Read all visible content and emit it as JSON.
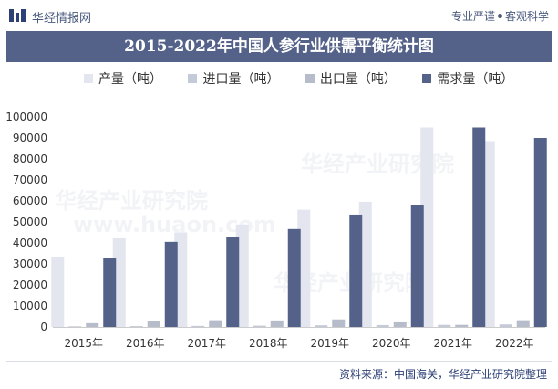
{
  "header": {
    "brand": "华经情报网",
    "tagline_left": "专业严谨",
    "tagline_right": "客观科学"
  },
  "title": "2015-2022年中国人参行业供需平衡统计图",
  "source": "资料来源：中国海关，华经产业研究院整理",
  "watermark": {
    "cn": "华经产业研究院",
    "en": "www.huaon.com"
  },
  "colors": {
    "production": "#e3e6ef",
    "imports": "#c5cad8",
    "exports": "#b7bccb",
    "demand": "#54628a",
    "axis": "#cccccc",
    "title_bg": "#54628a"
  },
  "chart_data": {
    "type": "bar",
    "title": "2015-2022年中国人参行业供需平衡统计图",
    "xlabel": "",
    "ylabel": "",
    "categories": [
      "2015年",
      "2016年",
      "2017年",
      "2018年",
      "2019年",
      "2020年",
      "2021年",
      "2022年"
    ],
    "series": [
      {
        "name": "产量（吨）",
        "values": [
          33500,
          42200,
          45000,
          48800,
          55800,
          59600,
          95000,
          88500
        ]
      },
      {
        "name": "进口量（吨）",
        "values": [
          300,
          400,
          500,
          600,
          800,
          900,
          1000,
          1200
        ]
      },
      {
        "name": "出口量（吨）",
        "values": [
          1800,
          2600,
          3200,
          3100,
          3600,
          2200,
          1000,
          3200
        ]
      },
      {
        "name": "需求量（吨）",
        "values": [
          32800,
          40500,
          43000,
          46600,
          53500,
          58000,
          95000,
          90000
        ]
      }
    ],
    "ylim": [
      0,
      100000
    ],
    "yticks": [
      0,
      10000,
      20000,
      30000,
      40000,
      50000,
      60000,
      70000,
      80000,
      90000,
      100000
    ],
    "grid": false,
    "legend_position": "top"
  }
}
